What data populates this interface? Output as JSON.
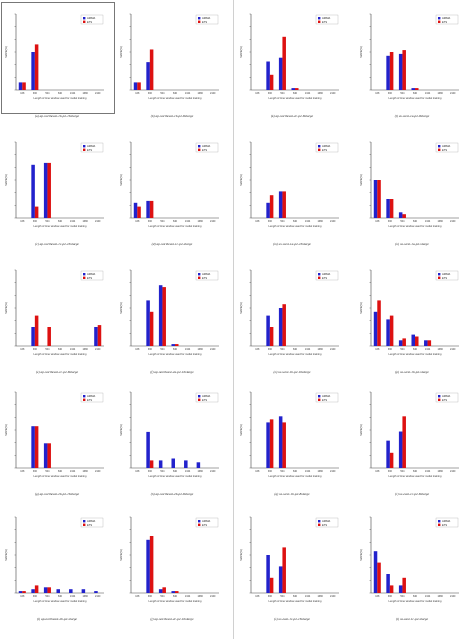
{
  "colors": {
    "series_a": "#2222cc",
    "series_b": "#dd1111",
    "axis": "#444444"
  },
  "chart_data": [
    {
      "type": "bar",
      "caption": "(a) ap-northeast-1b-p2-16xlarge",
      "xlabel": "Length of time window used for model training",
      "ylabel": "MAPE(%)",
      "categories": [
        "168",
        "336",
        "504",
        "840",
        "1344",
        "1680",
        "2100"
      ],
      "series": [
        {
          "name": "ARIMA",
          "values": [
            3,
            15,
            0,
            0,
            0,
            0,
            0
          ]
        },
        {
          "name": "ETS",
          "values": [
            3,
            18,
            0,
            0,
            0,
            0,
            0
          ]
        }
      ],
      "yticks": [
        "",
        "",
        "",
        "",
        "",
        "",
        ""
      ],
      "ylim": [
        0,
        30
      ],
      "legend": "top-right",
      "grid": false
    },
    {
      "type": "bar",
      "caption": "(b) ap-northeast-1b-p2-8xlarge",
      "xlabel": "Length of time window used for model training",
      "ylabel": "MAPE(%)",
      "categories": [
        "168",
        "336",
        "504",
        "840",
        "1344",
        "1680",
        "2100"
      ],
      "series": [
        {
          "name": "ARIMA",
          "values": [
            3,
            11,
            0,
            0,
            0,
            0,
            0
          ]
        },
        {
          "name": "ETS",
          "values": [
            3,
            16,
            0,
            0,
            0,
            0,
            0
          ]
        }
      ],
      "yticks": [
        "",
        "",
        "",
        "",
        "",
        "",
        ""
      ],
      "ylim": [
        0,
        30
      ],
      "legend": "top-right",
      "grid": false
    },
    {
      "type": "bar",
      "caption": "(k) ap-northeast-2c-p2-8xlarge",
      "xlabel": "Length of time window used for model training",
      "ylabel": "MAPE(%)",
      "categories": [
        "168",
        "336",
        "504",
        "840",
        "1344",
        "1680",
        "2100"
      ],
      "series": [
        {
          "name": "ARIMA",
          "values": [
            0,
            15,
            17,
            1,
            0,
            0,
            0
          ]
        },
        {
          "name": "ETS",
          "values": [
            0,
            8,
            28,
            1,
            0,
            0,
            0
          ]
        }
      ],
      "yticks": [
        "",
        "",
        "",
        "",
        "",
        "",
        ""
      ],
      "ylim": [
        0,
        40
      ],
      "legend": "top-right",
      "grid": false
    },
    {
      "type": "bar",
      "caption": "(l) us-west-1a-p2-8xlarge",
      "xlabel": "Length of time window used for model training",
      "ylabel": "MAPE(%)",
      "categories": [
        "168",
        "336",
        "504",
        "840",
        "1344",
        "1680",
        "2100"
      ],
      "series": [
        {
          "name": "ARIMA",
          "values": [
            0,
            18,
            19,
            1,
            0,
            0,
            0
          ]
        },
        {
          "name": "ETS",
          "values": [
            0,
            20,
            21,
            1,
            0,
            0,
            0
          ]
        }
      ],
      "yticks": [
        "",
        "",
        "",
        "",
        "",
        "",
        ""
      ],
      "ylim": [
        0,
        40
      ],
      "legend": "top-right",
      "grid": false
    },
    {
      "type": "bar",
      "caption": "(c) ap-northeast-1c-p2-16xlarge",
      "xlabel": "Length of time window used for model training",
      "ylabel": "MAPE(%)",
      "categories": [
        "168",
        "336",
        "504",
        "840",
        "1344",
        "1680",
        "2100"
      ],
      "series": [
        {
          "name": "ARIMA",
          "values": [
            0,
            28,
            29,
            0,
            0,
            0,
            0
          ]
        },
        {
          "name": "ETS",
          "values": [
            0,
            6,
            29,
            0,
            0,
            0,
            0
          ]
        }
      ],
      "yticks": [
        "",
        "",
        "",
        "",
        "",
        "",
        ""
      ],
      "ylim": [
        0,
        40
      ],
      "legend": "top-right",
      "grid": false
    },
    {
      "type": "bar",
      "caption": "(d) ap-northeast-1c-p2-xlarge",
      "xlabel": "Length of time window used for model training",
      "ylabel": "MAPE(%)",
      "categories": [
        "168",
        "336",
        "504",
        "840",
        "1344",
        "1680",
        "2100"
      ],
      "series": [
        {
          "name": "ARIMA",
          "values": [
            8,
            9,
            0,
            0,
            0,
            0,
            0
          ]
        },
        {
          "name": "ETS",
          "values": [
            6,
            9,
            0,
            0,
            0,
            0,
            0
          ]
        }
      ],
      "yticks": [
        "",
        "",
        "",
        "",
        "",
        "",
        ""
      ],
      "ylim": [
        0,
        40
      ],
      "legend": "top-right",
      "grid": false
    },
    {
      "type": "bar",
      "caption": "(m) us-west-1a-p2-16xlarge",
      "xlabel": "Length of time window used for model training",
      "ylabel": "MAPE(%)",
      "categories": [
        "168",
        "336",
        "504",
        "840",
        "1344",
        "1680",
        "2100"
      ],
      "series": [
        {
          "name": "ARIMA",
          "values": [
            0,
            8,
            14,
            0,
            0,
            0,
            0
          ]
        },
        {
          "name": "ETS",
          "values": [
            0,
            12,
            14,
            0,
            0,
            0,
            0
          ]
        }
      ],
      "yticks": [
        "",
        "",
        "",
        "",
        "",
        "",
        ""
      ],
      "ylim": [
        0,
        40
      ],
      "legend": "top-right",
      "grid": false
    },
    {
      "type": "bar",
      "caption": "(n) us-west-1a-p2-xlarge",
      "xlabel": "Length of time window used for model training",
      "ylabel": "MAPE(%)",
      "categories": [
        "168",
        "336",
        "504",
        "840",
        "1344",
        "1680",
        "2100"
      ],
      "series": [
        {
          "name": "ARIMA",
          "values": [
            20,
            10,
            3,
            0,
            0,
            0,
            0
          ]
        },
        {
          "name": "ETS",
          "values": [
            20,
            10,
            2,
            0,
            0,
            0,
            0
          ]
        }
      ],
      "yticks": [
        "",
        "",
        "",
        "",
        "",
        "",
        ""
      ],
      "ylim": [
        0,
        40
      ],
      "legend": "top-right",
      "grid": false
    },
    {
      "type": "bar",
      "caption": "(e) ap-northeast-1c-p2-8xlarge",
      "xlabel": "Length of time window used for model training",
      "ylabel": "MAPE(%)",
      "categories": [
        "168",
        "336",
        "504",
        "840",
        "1344",
        "1680",
        "2100"
      ],
      "series": [
        {
          "name": "ARIMA",
          "values": [
            0,
            10,
            0,
            0,
            0,
            0,
            10
          ]
        },
        {
          "name": "ETS",
          "values": [
            0,
            16,
            10,
            0,
            0,
            0,
            11
          ]
        }
      ],
      "yticks": [
        "",
        "",
        "",
        "",
        "",
        "",
        ""
      ],
      "ylim": [
        0,
        40
      ],
      "legend": "top-right",
      "grid": false
    },
    {
      "type": "bar",
      "caption": "(f) ap-northeast-2a-p2-16xlarge",
      "xlabel": "Length of time window used for model training",
      "ylabel": "MAPE(%)",
      "categories": [
        "168",
        "336",
        "504",
        "840",
        "1344",
        "1680",
        "2100"
      ],
      "series": [
        {
          "name": "ARIMA",
          "values": [
            0,
            24,
            32,
            1,
            0,
            0,
            0
          ]
        },
        {
          "name": "ETS",
          "values": [
            0,
            18,
            31,
            1,
            0,
            0,
            0
          ]
        }
      ],
      "yticks": [
        "",
        "",
        "",
        "",
        "",
        "",
        ""
      ],
      "ylim": [
        0,
        40
      ],
      "legend": "top-right",
      "grid": false
    },
    {
      "type": "bar",
      "caption": "(o) us-west-1b-p2-16xlarge",
      "xlabel": "Length of time window used for model training",
      "ylabel": "MAPE(%)",
      "categories": [
        "168",
        "336",
        "504",
        "840",
        "1344",
        "1680",
        "2100"
      ],
      "series": [
        {
          "name": "ARIMA",
          "values": [
            0,
            16,
            20,
            0,
            0,
            0,
            0
          ]
        },
        {
          "name": "ETS",
          "values": [
            0,
            10,
            22,
            0,
            0,
            0,
            0
          ]
        }
      ],
      "yticks": [
        "",
        "",
        "",
        "",
        "",
        "",
        ""
      ],
      "ylim": [
        0,
        40
      ],
      "legend": "top-right",
      "grid": false
    },
    {
      "type": "bar",
      "caption": "(p) us-west-1b-p2-xlarge",
      "xlabel": "Length of time window used for model training",
      "ylabel": "MAPE(%)",
      "categories": [
        "168",
        "336",
        "504",
        "840",
        "1344",
        "1680",
        "2100"
      ],
      "series": [
        {
          "name": "ARIMA",
          "values": [
            18,
            14,
            3,
            6,
            3,
            0,
            0
          ]
        },
        {
          "name": "ETS",
          "values": [
            24,
            16,
            4,
            5,
            3,
            0,
            0
          ]
        }
      ],
      "yticks": [
        "",
        "",
        "",
        "",
        "",
        "",
        ""
      ],
      "ylim": [
        0,
        40
      ],
      "legend": "top-right",
      "grid": false
    },
    {
      "type": "bar",
      "caption": "(g) ap-northeast-2b-p2-16xlarge",
      "xlabel": "Length of time window used for model training",
      "ylabel": "MAPE(%)",
      "categories": [
        "168",
        "336",
        "504",
        "840",
        "1344",
        "1680",
        "2100"
      ],
      "series": [
        {
          "name": "ARIMA",
          "values": [
            0,
            22,
            13,
            0,
            0,
            0,
            0
          ]
        },
        {
          "name": "ETS",
          "values": [
            0,
            22,
            13,
            0,
            0,
            0,
            0
          ]
        }
      ],
      "yticks": [
        "",
        "",
        "",
        "",
        "",
        "",
        ""
      ],
      "ylim": [
        0,
        40
      ],
      "legend": "top-right",
      "grid": false
    },
    {
      "type": "bar",
      "caption": "(h) ap-northeast-2b-p2-8xlarge",
      "xlabel": "Length of time window used for model training",
      "ylabel": "MAPE(%)",
      "categories": [
        "168",
        "336",
        "504",
        "840",
        "1344",
        "1680",
        "2100"
      ],
      "series": [
        {
          "name": "ARIMA",
          "values": [
            0,
            19,
            4,
            5,
            4,
            3,
            0
          ]
        },
        {
          "name": "ETS",
          "values": [
            0,
            4,
            0,
            0,
            0,
            0,
            0
          ]
        }
      ],
      "yticks": [
        "",
        "",
        "",
        "",
        "",
        "",
        ""
      ],
      "ylim": [
        0,
        40
      ],
      "legend": "top-right",
      "grid": false
    },
    {
      "type": "bar",
      "caption": "(q) us-west-1b-p2-8xlarge",
      "xlabel": "Length of time window used for model training",
      "ylabel": "MAPE(%)",
      "categories": [
        "168",
        "336",
        "504",
        "840",
        "1344",
        "1680",
        "2100"
      ],
      "series": [
        {
          "name": "ARIMA",
          "values": [
            0,
            30,
            34,
            0,
            0,
            0,
            0
          ]
        },
        {
          "name": "ETS",
          "values": [
            0,
            32,
            30,
            0,
            0,
            0,
            0
          ]
        }
      ],
      "yticks": [
        "",
        "",
        "",
        "",
        "",
        "",
        ""
      ],
      "ylim": [
        0,
        50
      ],
      "legend": "top-right",
      "grid": false
    },
    {
      "type": "bar",
      "caption": "(r) us-east-1c-p2-8xlarge",
      "xlabel": "Length of time window used for model training",
      "ylabel": "MAPE(%)",
      "categories": [
        "168",
        "336",
        "504",
        "840",
        "1344",
        "1680",
        "2100"
      ],
      "series": [
        {
          "name": "ARIMA",
          "values": [
            0,
            18,
            24,
            0,
            0,
            0,
            0
          ]
        },
        {
          "name": "ETS",
          "values": [
            0,
            10,
            34,
            0,
            0,
            0,
            0
          ]
        }
      ],
      "yticks": [
        "",
        "",
        "",
        "",
        "",
        "",
        ""
      ],
      "ylim": [
        0,
        50
      ],
      "legend": "top-right",
      "grid": false
    },
    {
      "type": "bar",
      "caption": "(i) ap-northeast-2b-p2-xlarge",
      "xlabel": "Length of time window used for model training",
      "ylabel": "MAPE(%)",
      "categories": [
        "168",
        "336",
        "504",
        "840",
        "1344",
        "1680",
        "2100"
      ],
      "series": [
        {
          "name": "ARIMA",
          "values": [
            1,
            2,
            3,
            2,
            2,
            2,
            1
          ]
        },
        {
          "name": "ETS",
          "values": [
            1,
            4,
            3,
            0,
            0,
            0,
            0
          ]
        }
      ],
      "yticks": [
        "",
        "",
        "",
        "",
        "",
        "",
        ""
      ],
      "ylim": [
        0,
        40
      ],
      "legend": "top-right",
      "grid": false
    },
    {
      "type": "bar",
      "caption": "(j) ap-northeast-2c-p2-16xlarge",
      "xlabel": "Length of time window used for model training",
      "ylabel": "MAPE(%)",
      "categories": [
        "168",
        "336",
        "504",
        "840",
        "1344",
        "1680",
        "2100"
      ],
      "series": [
        {
          "name": "ARIMA",
          "values": [
            0,
            28,
            2,
            1,
            0,
            0,
            0
          ]
        },
        {
          "name": "ETS",
          "values": [
            0,
            30,
            3,
            1,
            0,
            0,
            0
          ]
        }
      ],
      "yticks": [
        "",
        "",
        "",
        "",
        "",
        "",
        ""
      ],
      "ylim": [
        0,
        40
      ],
      "legend": "top-right",
      "grid": false
    },
    {
      "type": "bar",
      "caption": "(s) us-east-1c-p2-16xlarge",
      "xlabel": "Length of time window used for model training",
      "ylabel": "MAPE(%)",
      "categories": [
        "168",
        "336",
        "504",
        "840",
        "1344",
        "1680",
        "2100"
      ],
      "series": [
        {
          "name": "ARIMA",
          "values": [
            0,
            20,
            14,
            0,
            0,
            0,
            0
          ]
        },
        {
          "name": "ETS",
          "values": [
            0,
            8,
            24,
            0,
            0,
            0,
            0
          ]
        }
      ],
      "yticks": [
        "",
        "",
        "",
        "",
        "",
        "",
        ""
      ],
      "ylim": [
        0,
        40
      ],
      "legend": "top-right",
      "grid": false
    },
    {
      "type": "bar",
      "caption": "(t) us-east-1c-p2-xlarge",
      "xlabel": "Length of time window used for model training",
      "ylabel": "MAPE(%)",
      "categories": [
        "168",
        "336",
        "504",
        "840",
        "1344",
        "1680",
        "2100"
      ],
      "series": [
        {
          "name": "ARIMA",
          "values": [
            22,
            10,
            4,
            0,
            0,
            0,
            0
          ]
        },
        {
          "name": "ETS",
          "values": [
            16,
            4,
            8,
            0,
            0,
            0,
            0
          ]
        }
      ],
      "yticks": [
        "",
        "",
        "",
        "",
        "",
        "",
        ""
      ],
      "ylim": [
        0,
        40
      ],
      "legend": "top-right",
      "grid": false
    }
  ]
}
